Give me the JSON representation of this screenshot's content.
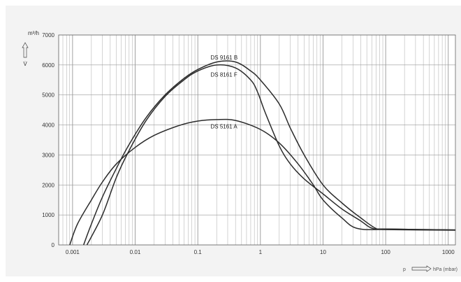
{
  "chart_data": {
    "type": "line",
    "x_scale": "log",
    "xlim": [
      0.0006,
      1300
    ],
    "ylim": [
      0,
      7000
    ],
    "grid": true,
    "y_axis_unit": "m³/h",
    "y_axis_symbol": "V̇",
    "x_axis_label_p": "p",
    "x_axis_unit": "hPa (mbar)",
    "x_tick_labels": [
      "0.001",
      "0.01",
      "0.1",
      "1",
      "10",
      "100",
      "1000"
    ],
    "x_ticks": [
      0.001,
      0.01,
      0.1,
      1,
      10,
      100,
      1000
    ],
    "y_ticks": [
      0,
      1000,
      2000,
      3000,
      4000,
      5000,
      6000,
      7000
    ],
    "y_tick_labels": [
      "0",
      "1000",
      "2000",
      "3000",
      "4000",
      "5000",
      "6000",
      "7000"
    ],
    "series": [
      {
        "name": "DS 9161 B",
        "label_at": [
          0.16,
          6250
        ],
        "points": [
          [
            0.0015,
            0
          ],
          [
            0.002,
            700
          ],
          [
            0.003,
            1600
          ],
          [
            0.005,
            2550
          ],
          [
            0.008,
            3350
          ],
          [
            0.015,
            4250
          ],
          [
            0.03,
            5000
          ],
          [
            0.06,
            5550
          ],
          [
            0.1,
            5850
          ],
          [
            0.2,
            6100
          ],
          [
            0.4,
            6100
          ],
          [
            0.7,
            5800
          ],
          [
            1.0,
            5500
          ],
          [
            2.0,
            4700
          ],
          [
            3.0,
            3900
          ],
          [
            5.0,
            3000
          ],
          [
            10.0,
            2000
          ],
          [
            20.0,
            1400
          ],
          [
            40.0,
            900
          ],
          [
            70.0,
            550
          ],
          [
            100.0,
            530
          ],
          [
            1300.0,
            500
          ]
        ]
      },
      {
        "name": "DS 8161 F",
        "label_at": [
          0.16,
          5680
        ],
        "points": [
          [
            0.0017,
            0
          ],
          [
            0.003,
            1000
          ],
          [
            0.005,
            2250
          ],
          [
            0.008,
            3150
          ],
          [
            0.015,
            4150
          ],
          [
            0.03,
            4950
          ],
          [
            0.06,
            5500
          ],
          [
            0.1,
            5800
          ],
          [
            0.2,
            6000
          ],
          [
            0.4,
            5900
          ],
          [
            0.7,
            5500
          ],
          [
            0.9,
            5100
          ],
          [
            1.2,
            4400
          ],
          [
            2.0,
            3300
          ],
          [
            3.0,
            2700
          ],
          [
            5.0,
            2200
          ],
          [
            10.0,
            1700
          ],
          [
            20.0,
            1200
          ],
          [
            40.0,
            800
          ],
          [
            60.0,
            560
          ],
          [
            100.0,
            530
          ],
          [
            1300.0,
            500
          ]
        ]
      },
      {
        "name": "DS 5161 A",
        "label_at": [
          0.16,
          3950
        ],
        "points": [
          [
            0.0009,
            0
          ],
          [
            0.0012,
            700
          ],
          [
            0.002,
            1500
          ],
          [
            0.003,
            2100
          ],
          [
            0.005,
            2700
          ],
          [
            0.01,
            3250
          ],
          [
            0.02,
            3650
          ],
          [
            0.05,
            3980
          ],
          [
            0.1,
            4130
          ],
          [
            0.2,
            4180
          ],
          [
            0.4,
            4150
          ],
          [
            1.0,
            3850
          ],
          [
            2.0,
            3400
          ],
          [
            4.0,
            2700
          ],
          [
            7.0,
            2000
          ],
          [
            10.0,
            1500
          ],
          [
            20.0,
            900
          ],
          [
            35.0,
            550
          ],
          [
            100.0,
            510
          ],
          [
            1300.0,
            490
          ]
        ]
      }
    ]
  }
}
